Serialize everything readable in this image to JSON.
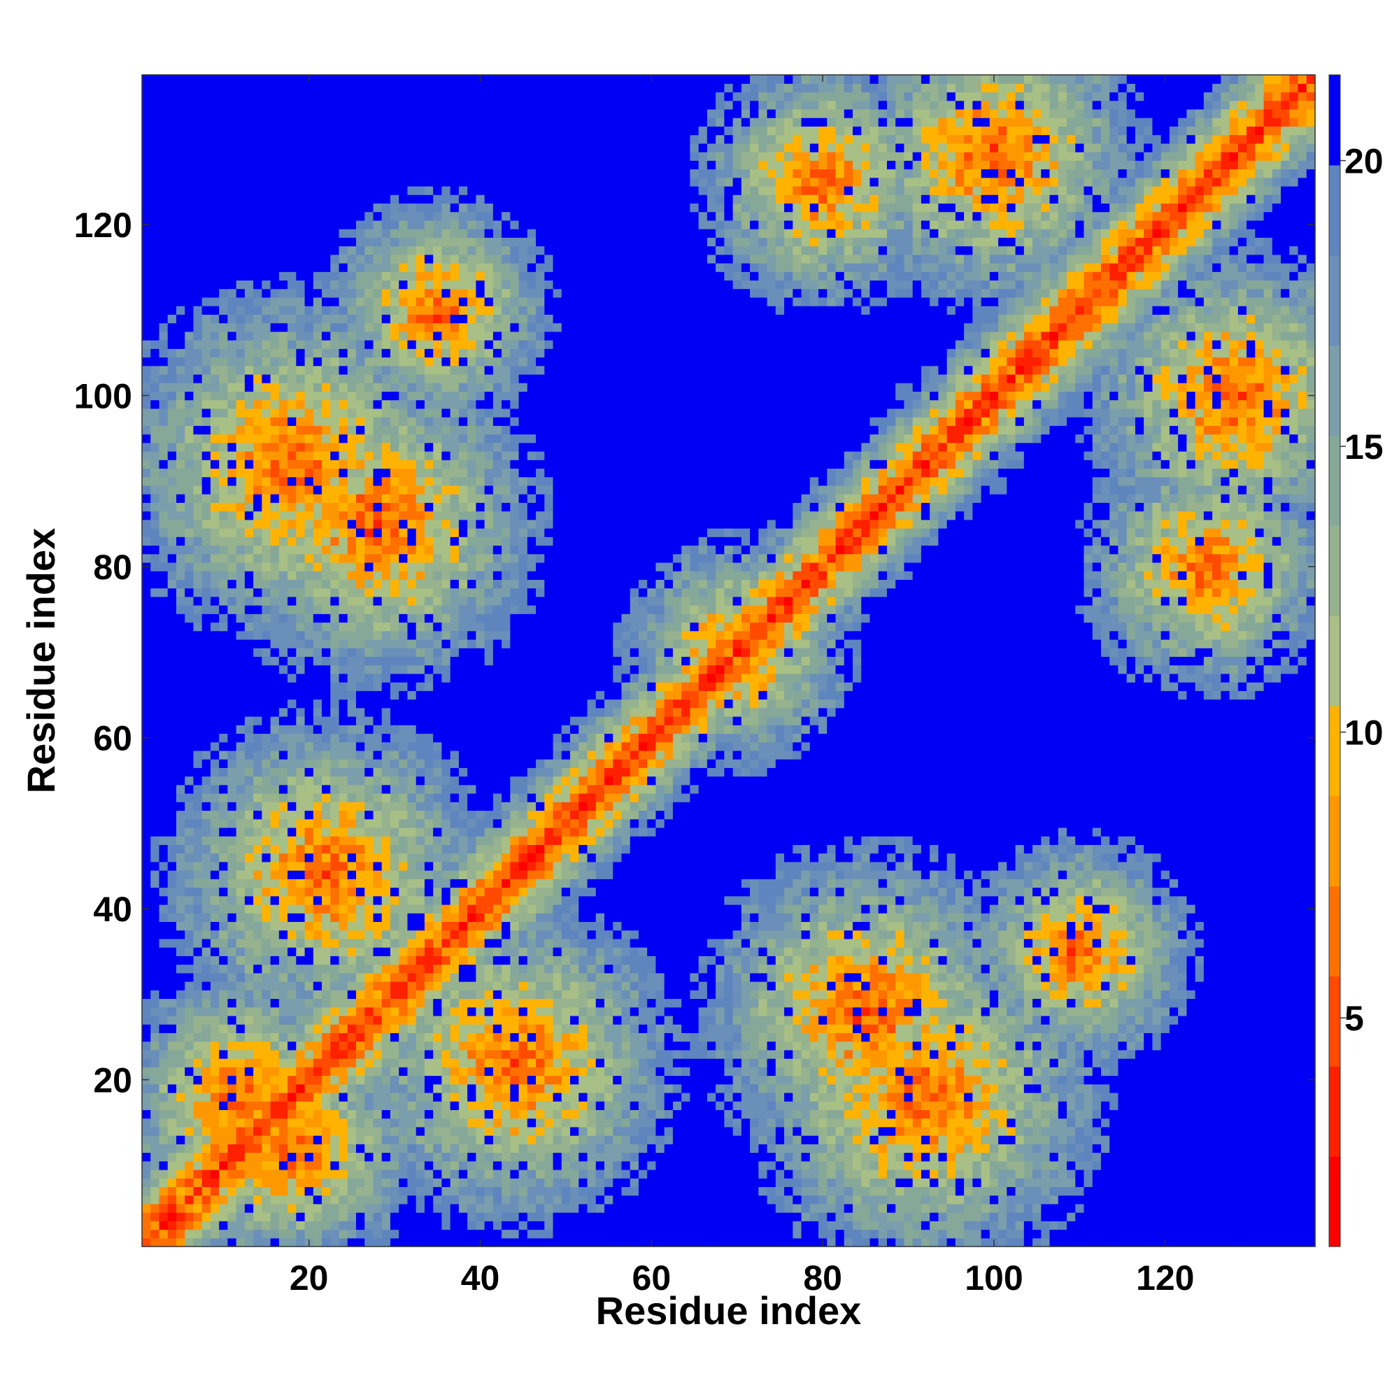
{
  "chart_data": {
    "type": "heatmap",
    "title": "",
    "xlabel": "Residue index",
    "ylabel": "Residue index",
    "n_residues": 137,
    "xlim": [
      1,
      137
    ],
    "ylim": [
      1,
      137
    ],
    "x_ticks": [
      20,
      40,
      60,
      80,
      100,
      120
    ],
    "y_ticks": [
      20,
      40,
      60,
      80,
      100,
      120
    ],
    "colorbar": {
      "range": [
        1,
        21.5
      ],
      "ticks": [
        5,
        10,
        15,
        20
      ],
      "palette": [
        "#ff0000",
        "#ff2000",
        "#ff4a00",
        "#ff7000",
        "#ff9800",
        "#ffb300",
        "#a8bf86",
        "#96b28f",
        "#86a898",
        "#7a9eab",
        "#6a8fb8",
        "#5f85bf",
        "#0000f5"
      ]
    },
    "structure_hints": {
      "description": "distance map; diagonal band of small values with off-diagonal contact clusters, large distances elsewhere",
      "clusters": [
        {
          "x": 12,
          "y": 18,
          "r": 10
        },
        {
          "x": 18,
          "y": 12,
          "r": 10
        },
        {
          "x": 22,
          "y": 44,
          "r": 13
        },
        {
          "x": 44,
          "y": 22,
          "r": 13
        },
        {
          "x": 18,
          "y": 92,
          "r": 14
        },
        {
          "x": 92,
          "y": 18,
          "r": 14
        },
        {
          "x": 70,
          "y": 70,
          "r": 9
        },
        {
          "x": 100,
          "y": 128,
          "r": 12
        },
        {
          "x": 128,
          "y": 100,
          "r": 12
        },
        {
          "x": 85,
          "y": 28,
          "r": 13
        },
        {
          "x": 28,
          "y": 85,
          "r": 13
        },
        {
          "x": 125,
          "y": 80,
          "r": 10
        },
        {
          "x": 80,
          "y": 125,
          "r": 10
        },
        {
          "x": 35,
          "y": 110,
          "r": 9
        },
        {
          "x": 110,
          "y": 35,
          "r": 9
        }
      ]
    }
  }
}
